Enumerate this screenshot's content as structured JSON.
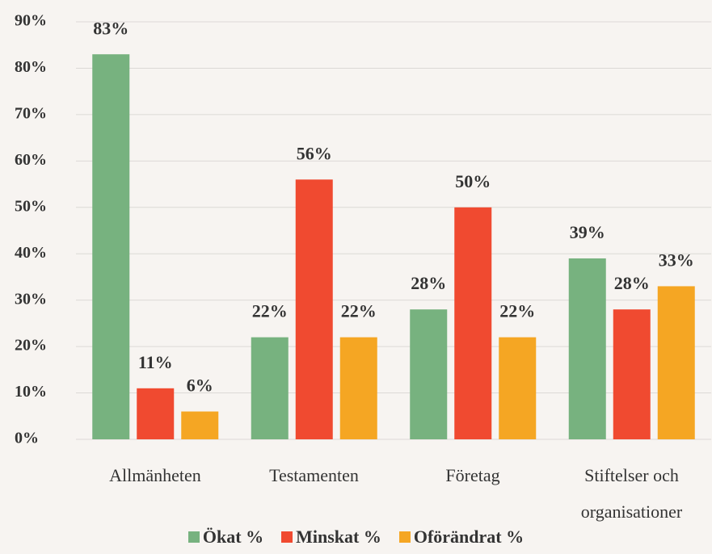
{
  "chart_data": {
    "type": "bar",
    "categories": [
      "Allmänheten",
      "Testamenten",
      "Företag",
      "Stiftelser och organisationer"
    ],
    "series": [
      {
        "name": "Ökat %",
        "color": "#77b27f",
        "values": [
          83,
          22,
          28,
          39
        ],
        "value_labels": [
          "83%",
          "22%",
          "28%",
          "39%"
        ]
      },
      {
        "name": "Minskat %",
        "color": "#f04a30",
        "values": [
          11,
          56,
          50,
          28
        ],
        "value_labels": [
          "11%",
          "56%",
          "50%",
          "28%"
        ]
      },
      {
        "name": "Oförändrat %",
        "color": "#f5a623",
        "values": [
          6,
          22,
          22,
          33
        ],
        "value_labels": [
          "6%",
          "22%",
          "22%",
          "33%"
        ]
      }
    ],
    "ylim": [
      0,
      90
    ],
    "yticks": [
      {
        "value": 0,
        "label": "0%"
      },
      {
        "value": 10,
        "label": "10%"
      },
      {
        "value": 20,
        "label": "20%"
      },
      {
        "value": 30,
        "label": "30%"
      },
      {
        "value": 40,
        "label": "40%"
      },
      {
        "value": 50,
        "label": "50%"
      },
      {
        "value": 60,
        "label": "60%"
      },
      {
        "value": 70,
        "label": "70%"
      },
      {
        "value": 80,
        "label": "80%"
      },
      {
        "value": 90,
        "label": "90%"
      }
    ],
    "grid": true,
    "legend": "bottom"
  }
}
